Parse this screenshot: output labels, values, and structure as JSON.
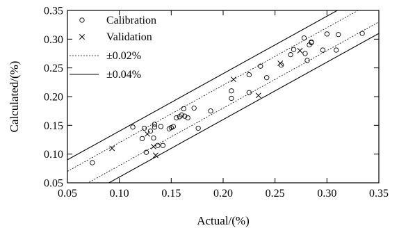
{
  "chart_data": {
    "type": "scatter",
    "xlabel": "Actual/(%)",
    "ylabel": "Calculated/(%)",
    "xlim": [
      0.05,
      0.35
    ],
    "ylim": [
      0.05,
      0.35
    ],
    "xticks": [
      "0.05",
      "0.10",
      "0.15",
      "0.20",
      "0.25",
      "0.30",
      "0.35"
    ],
    "yticks": [
      "0.05",
      "0.10",
      "0.15",
      "0.20",
      "0.25",
      "0.30",
      "0.35"
    ],
    "grid": false,
    "legend_position": "top-left",
    "series": [
      {
        "name": "Calibration",
        "marker": "circle",
        "points": [
          [
            0.074,
            0.085
          ],
          [
            0.113,
            0.147
          ],
          [
            0.122,
            0.127
          ],
          [
            0.124,
            0.145
          ],
          [
            0.126,
            0.103
          ],
          [
            0.13,
            0.14
          ],
          [
            0.133,
            0.128
          ],
          [
            0.134,
            0.152
          ],
          [
            0.134,
            0.147
          ],
          [
            0.137,
            0.115
          ],
          [
            0.14,
            0.148
          ],
          [
            0.142,
            0.115
          ],
          [
            0.148,
            0.144
          ],
          [
            0.15,
            0.146
          ],
          [
            0.152,
            0.148
          ],
          [
            0.155,
            0.163
          ],
          [
            0.158,
            0.165
          ],
          [
            0.16,
            0.168
          ],
          [
            0.162,
            0.179
          ],
          [
            0.163,
            0.166
          ],
          [
            0.166,
            0.163
          ],
          [
            0.172,
            0.18
          ],
          [
            0.176,
            0.145
          ],
          [
            0.188,
            0.175
          ],
          [
            0.208,
            0.21
          ],
          [
            0.208,
            0.197
          ],
          [
            0.225,
            0.238
          ],
          [
            0.225,
            0.207
          ],
          [
            0.236,
            0.253
          ],
          [
            0.242,
            0.233
          ],
          [
            0.256,
            0.255
          ],
          [
            0.265,
            0.273
          ],
          [
            0.268,
            0.282
          ],
          [
            0.278,
            0.302
          ],
          [
            0.279,
            0.275
          ],
          [
            0.281,
            0.263
          ],
          [
            0.283,
            0.29
          ],
          [
            0.285,
            0.295
          ],
          [
            0.285,
            0.294
          ],
          [
            0.296,
            0.281
          ],
          [
            0.3,
            0.309
          ],
          [
            0.309,
            0.281
          ],
          [
            0.311,
            0.308
          ],
          [
            0.334,
            0.31
          ]
        ]
      },
      {
        "name": "Validation",
        "marker": "cross",
        "points": [
          [
            0.093,
            0.11
          ],
          [
            0.127,
            0.135
          ],
          [
            0.133,
            0.113
          ],
          [
            0.135,
            0.098
          ],
          [
            0.21,
            0.23
          ],
          [
            0.234,
            0.202
          ],
          [
            0.255,
            0.258
          ],
          [
            0.274,
            0.28
          ]
        ]
      }
    ],
    "reference_lines": [
      {
        "name": "±0.02%",
        "style": "dotted",
        "offsets": [
          0.02,
          -0.02
        ]
      },
      {
        "name": "±0.04%",
        "style": "solid",
        "offsets": [
          0.04,
          -0.04
        ]
      }
    ]
  }
}
